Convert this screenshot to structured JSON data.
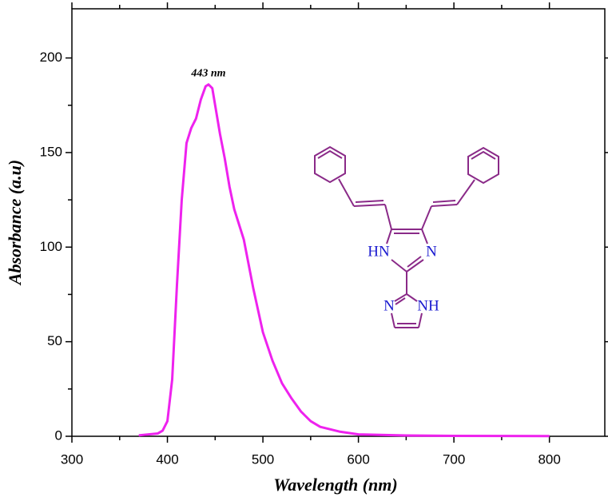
{
  "chart_data": {
    "type": "line",
    "x_label": "Wavelength (nm)",
    "y_label": "Absorbance (a.u)",
    "annotation": "443 nm",
    "annotation_x": 443,
    "annotation_y": 186,
    "structure_labels": [
      "HN",
      "N",
      "N",
      "NH"
    ],
    "x": [
      370,
      390,
      395,
      400,
      405,
      410,
      415,
      420,
      425,
      430,
      435,
      440,
      443,
      447,
      450,
      455,
      460,
      465,
      470,
      475,
      480,
      490,
      500,
      510,
      520,
      530,
      540,
      550,
      560,
      580,
      600,
      650,
      700,
      800
    ],
    "series": [
      {
        "name": "Absorbance",
        "color": "#ee22ee",
        "values": [
          0.5,
          1.5,
          3,
          8,
          30,
          80,
          125,
          155,
          163,
          168,
          178,
          185,
          186,
          184,
          175,
          160,
          147,
          132,
          120,
          112,
          104,
          78,
          55,
          40,
          28,
          20,
          13,
          8,
          5,
          2.5,
          1,
          0.4,
          0.2,
          0.1
        ]
      }
    ],
    "xlim": [
      300,
      858
    ],
    "ylim": [
      0,
      226
    ],
    "xticks": [
      300,
      400,
      500,
      600,
      700,
      800
    ],
    "yticks": [
      0,
      50,
      100,
      150,
      200
    ]
  }
}
